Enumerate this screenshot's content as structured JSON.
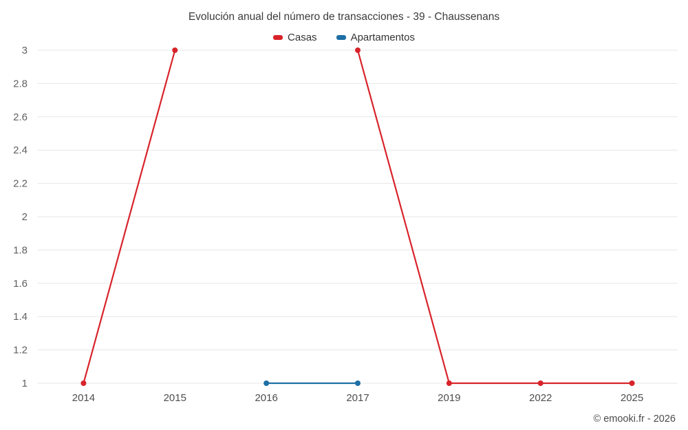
{
  "chart_data": {
    "type": "line",
    "title": "Evolución anual del número de transacciones - 39 - Chaussenans",
    "categories": [
      "2014",
      "2015",
      "2016",
      "2017",
      "2019",
      "2022",
      "2025"
    ],
    "series": [
      {
        "name": "Casas",
        "color": "#d8232a",
        "values": [
          1,
          3,
          null,
          3,
          1,
          1,
          1
        ]
      },
      {
        "name": "Apartamentos",
        "color": "#1d6fa5",
        "values": [
          null,
          null,
          1,
          1,
          null,
          null,
          null
        ]
      }
    ],
    "ylim": [
      1,
      3
    ],
    "yticks": [
      1,
      1.2,
      1.4,
      1.6,
      1.8,
      2,
      2.2,
      2.4,
      2.6,
      2.8,
      3
    ],
    "xlabel": "",
    "ylabel": "",
    "grid": true,
    "legend_position": "top"
  },
  "footer": {
    "credit": "© emooki.fr - 2026"
  }
}
